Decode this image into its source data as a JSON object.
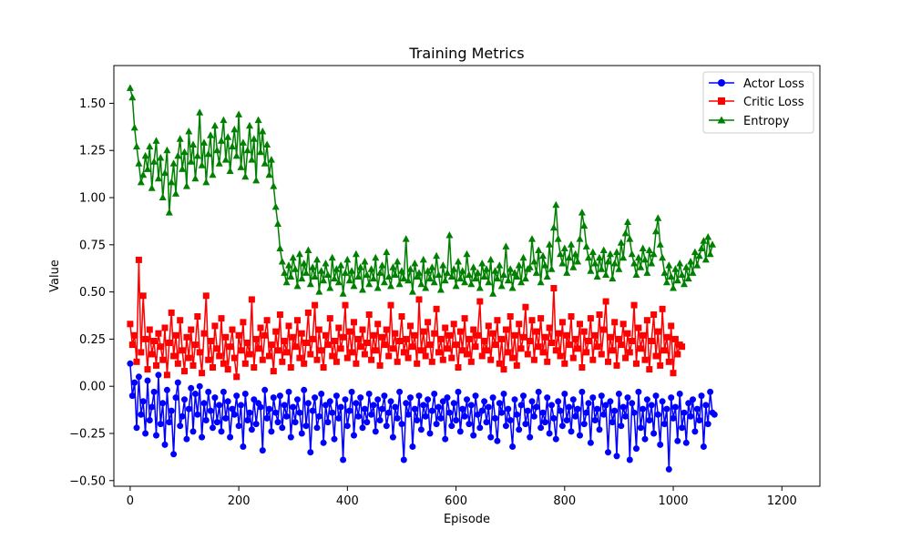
{
  "chart_data": {
    "type": "line",
    "title": "Training Metrics",
    "xlabel": "Episode",
    "ylabel": "Value",
    "xlim": [
      -30,
      1270
    ],
    "ylim": [
      -0.53,
      1.7
    ],
    "xticks": [
      0,
      200,
      400,
      600,
      800,
      1000,
      1200
    ],
    "xtick_labels": [
      "0",
      "200",
      "400",
      "600",
      "800",
      "1000",
      "1200"
    ],
    "yticks": [
      -0.5,
      -0.25,
      0.0,
      0.25,
      0.5,
      0.75,
      1.0,
      1.25,
      1.5
    ],
    "ytick_labels": [
      "−0.50",
      "−0.25",
      "0.00",
      "0.25",
      "0.50",
      "0.75",
      "1.00",
      "1.25",
      "1.50"
    ],
    "grid": false,
    "legend_position": "top-right",
    "x_step": 4,
    "series": [
      {
        "name": "Actor Loss",
        "color": "#0000ff",
        "marker": "circle",
        "values": [
          0.12,
          -0.05,
          0.02,
          -0.22,
          0.05,
          -0.15,
          -0.08,
          -0.25,
          0.03,
          -0.18,
          -0.11,
          -0.03,
          -0.26,
          0.06,
          -0.2,
          -0.09,
          -0.31,
          -0.02,
          -0.19,
          -0.13,
          -0.36,
          -0.06,
          0.02,
          -0.21,
          -0.16,
          -0.07,
          -0.28,
          -0.12,
          -0.01,
          -0.24,
          -0.04,
          -0.15,
          0.0,
          -0.27,
          -0.09,
          -0.18,
          -0.03,
          -0.13,
          -0.22,
          -0.06,
          -0.19,
          -0.1,
          -0.24,
          -0.03,
          -0.17,
          -0.08,
          -0.27,
          -0.12,
          -0.15,
          -0.05,
          -0.21,
          -0.1,
          -0.32,
          -0.04,
          -0.18,
          -0.14,
          -0.23,
          -0.07,
          -0.2,
          -0.09,
          -0.11,
          -0.34,
          -0.02,
          -0.17,
          -0.12,
          -0.24,
          -0.06,
          -0.14,
          -0.19,
          -0.05,
          -0.22,
          -0.1,
          -0.16,
          -0.03,
          -0.27,
          -0.11,
          -0.19,
          -0.07,
          -0.14,
          -0.25,
          -0.02,
          -0.21,
          -0.09,
          -0.35,
          -0.13,
          -0.06,
          -0.22,
          -0.16,
          -0.04,
          -0.3,
          -0.1,
          -0.19,
          -0.08,
          -0.14,
          -0.28,
          -0.05,
          -0.17,
          -0.11,
          -0.39,
          -0.07,
          -0.21,
          -0.13,
          -0.03,
          -0.26,
          -0.09,
          -0.16,
          -0.06,
          -0.22,
          -0.12,
          -0.19,
          -0.04,
          -0.15,
          -0.1,
          -0.24,
          -0.07,
          -0.18,
          -0.12,
          -0.05,
          -0.21,
          -0.14,
          -0.08,
          -0.27,
          -0.11,
          -0.17,
          -0.03,
          -0.2,
          -0.39,
          -0.09,
          -0.15,
          -0.06,
          -0.32,
          -0.12,
          -0.18,
          -0.05,
          -0.23,
          -0.1,
          -0.16,
          -0.07,
          -0.25,
          -0.13,
          -0.04,
          -0.2,
          -0.11,
          -0.17,
          -0.08,
          -0.28,
          -0.06,
          -0.14,
          -0.21,
          -0.09,
          -0.18,
          -0.03,
          -0.24,
          -0.12,
          -0.16,
          -0.07,
          -0.2,
          -0.1,
          -0.26,
          -0.05,
          -0.15,
          -0.22,
          -0.13,
          -0.08,
          -0.19,
          -0.11,
          -0.27,
          -0.06,
          -0.17,
          -0.29,
          -0.09,
          -0.14,
          -0.04,
          -0.21,
          -0.12,
          -0.18,
          -0.32,
          -0.07,
          -0.15,
          -0.23,
          -0.1,
          -0.05,
          -0.2,
          -0.13,
          -0.27,
          -0.08,
          -0.16,
          -0.11,
          -0.03,
          -0.22,
          -0.14,
          -0.19,
          -0.06,
          -0.25,
          -0.1,
          -0.17,
          -0.28,
          -0.08,
          -0.13,
          -0.21,
          -0.04,
          -0.18,
          -0.11,
          -0.24,
          -0.07,
          -0.16,
          -0.12,
          -0.26,
          -0.03,
          -0.2,
          -0.14,
          -0.09,
          -0.3,
          -0.06,
          -0.18,
          -0.12,
          -0.23,
          -0.05,
          -0.15,
          -0.1,
          -0.35,
          -0.08,
          -0.19,
          -0.13,
          -0.37,
          -0.04,
          -0.21,
          -0.11,
          -0.16,
          -0.06,
          -0.39,
          -0.09,
          -0.14,
          -0.33,
          -0.03,
          -0.22,
          -0.12,
          -0.28,
          -0.07,
          -0.18,
          -0.1,
          -0.25,
          -0.05,
          -0.15,
          -0.31,
          -0.08,
          -0.2,
          -0.12,
          -0.44,
          -0.06,
          -0.17,
          -0.11,
          -0.29,
          -0.04,
          -0.22,
          -0.14,
          -0.3,
          -0.09,
          -0.16,
          -0.07,
          -0.24,
          -0.12,
          -0.18,
          -0.05,
          -0.32,
          -0.1,
          -0.2,
          -0.03,
          -0.14,
          -0.15
        ]
      },
      {
        "name": "Critic Loss",
        "color": "#ff0000",
        "marker": "square",
        "values": [
          0.33,
          0.22,
          0.27,
          0.13,
          0.67,
          0.18,
          0.48,
          0.25,
          0.09,
          0.3,
          0.17,
          0.24,
          0.11,
          0.28,
          0.21,
          0.14,
          0.31,
          0.06,
          0.23,
          0.39,
          0.16,
          0.27,
          0.12,
          0.35,
          0.19,
          0.08,
          0.26,
          0.15,
          0.3,
          0.11,
          0.22,
          0.37,
          0.18,
          0.07,
          0.28,
          0.48,
          0.14,
          0.24,
          0.1,
          0.32,
          0.2,
          0.16,
          0.36,
          0.12,
          0.26,
          0.09,
          0.21,
          0.3,
          0.15,
          0.05,
          0.27,
          0.19,
          0.34,
          0.12,
          0.23,
          0.17,
          0.46,
          0.1,
          0.25,
          0.2,
          0.31,
          0.14,
          0.27,
          0.35,
          0.16,
          0.22,
          0.08,
          0.29,
          0.19,
          0.38,
          0.13,
          0.24,
          0.18,
          0.32,
          0.1,
          0.26,
          0.21,
          0.35,
          0.15,
          0.28,
          0.12,
          0.23,
          0.39,
          0.17,
          0.25,
          0.43,
          0.14,
          0.3,
          0.19,
          0.1,
          0.27,
          0.22,
          0.36,
          0.16,
          0.24,
          0.13,
          0.31,
          0.2,
          0.26,
          0.43,
          0.15,
          0.29,
          0.18,
          0.34,
          0.12,
          0.25,
          0.21,
          0.3,
          0.17,
          0.23,
          0.38,
          0.14,
          0.27,
          0.19,
          0.33,
          0.11,
          0.26,
          0.22,
          0.3,
          0.16,
          0.43,
          0.2,
          0.28,
          0.13,
          0.24,
          0.37,
          0.18,
          0.25,
          0.15,
          0.32,
          0.21,
          0.27,
          0.12,
          0.46,
          0.19,
          0.29,
          0.16,
          0.34,
          0.22,
          0.13,
          0.28,
          0.41,
          0.18,
          0.25,
          0.14,
          0.31,
          0.2,
          0.27,
          0.15,
          0.33,
          0.22,
          0.1,
          0.29,
          0.19,
          0.36,
          0.17,
          0.25,
          0.13,
          0.3,
          0.21,
          0.27,
          0.45,
          0.16,
          0.24,
          0.19,
          0.32,
          0.14,
          0.28,
          0.22,
          0.35,
          0.12,
          0.25,
          0.09,
          0.3,
          0.18,
          0.37,
          0.15,
          0.27,
          0.11,
          0.33,
          0.2,
          0.26,
          0.42,
          0.17,
          0.24,
          0.35,
          0.14,
          0.29,
          0.21,
          0.36,
          0.18,
          0.26,
          0.13,
          0.31,
          0.23,
          0.52,
          0.19,
          0.28,
          0.16,
          0.34,
          0.12,
          0.27,
          0.22,
          0.37,
          0.15,
          0.25,
          0.2,
          0.33,
          0.1,
          0.29,
          0.18,
          0.24,
          0.36,
          0.14,
          0.27,
          0.21,
          0.38,
          0.17,
          0.3,
          0.45,
          0.13,
          0.26,
          0.19,
          0.34,
          0.11,
          0.25,
          0.22,
          0.33,
          0.15,
          0.28,
          0.18,
          0.24,
          0.43,
          0.12,
          0.31,
          0.2,
          0.27,
          0.14,
          0.35,
          0.09,
          0.24,
          0.38,
          0.16,
          0.29,
          0.11,
          0.41,
          0.19,
          0.26,
          0.13,
          0.32,
          0.07,
          0.25,
          0.17,
          0.22,
          0.21
        ]
      },
      {
        "name": "Entropy",
        "color": "#008000",
        "marker": "triangle",
        "values": [
          1.58,
          1.53,
          1.37,
          1.27,
          1.18,
          1.08,
          1.12,
          1.22,
          1.15,
          1.27,
          1.05,
          1.19,
          1.3,
          1.1,
          1.21,
          1.0,
          1.13,
          1.25,
          0.92,
          1.08,
          1.18,
          1.02,
          1.22,
          1.31,
          1.15,
          1.24,
          1.06,
          1.35,
          1.19,
          1.28,
          1.1,
          1.22,
          1.45,
          1.17,
          1.29,
          1.08,
          1.23,
          1.33,
          1.12,
          1.38,
          1.25,
          1.18,
          1.3,
          1.41,
          1.2,
          1.32,
          1.14,
          1.27,
          1.36,
          1.22,
          1.44,
          1.16,
          1.29,
          1.11,
          1.25,
          1.38,
          1.2,
          1.31,
          1.09,
          1.41,
          1.24,
          1.35,
          1.18,
          1.28,
          1.12,
          1.2,
          1.06,
          0.95,
          0.86,
          0.73,
          0.66,
          0.6,
          0.55,
          0.64,
          0.58,
          0.68,
          0.62,
          0.53,
          0.7,
          0.57,
          0.65,
          0.6,
          0.72,
          0.54,
          0.63,
          0.58,
          0.67,
          0.5,
          0.61,
          0.56,
          0.65,
          0.59,
          0.52,
          0.68,
          0.57,
          0.62,
          0.55,
          0.64,
          0.49,
          0.6,
          0.67,
          0.56,
          0.61,
          0.53,
          0.7,
          0.58,
          0.63,
          0.51,
          0.66,
          0.59,
          0.54,
          0.62,
          0.57,
          0.68,
          0.52,
          0.6,
          0.64,
          0.55,
          0.71,
          0.58,
          0.53,
          0.63,
          0.59,
          0.66,
          0.54,
          0.61,
          0.57,
          0.78,
          0.56,
          0.62,
          0.5,
          0.65,
          0.58,
          0.6,
          0.54,
          0.67,
          0.52,
          0.61,
          0.57,
          0.63,
          0.55,
          0.69,
          0.59,
          0.51,
          0.64,
          0.56,
          0.6,
          0.8,
          0.58,
          0.62,
          0.53,
          0.66,
          0.57,
          0.61,
          0.55,
          0.7,
          0.59,
          0.54,
          0.63,
          0.57,
          0.6,
          0.52,
          0.65,
          0.58,
          0.62,
          0.55,
          0.67,
          0.49,
          0.61,
          0.57,
          0.64,
          0.53,
          0.59,
          0.74,
          0.56,
          0.62,
          0.52,
          0.6,
          0.58,
          0.64,
          0.55,
          0.68,
          0.57,
          0.62,
          0.63,
          0.78,
          0.66,
          0.6,
          0.72,
          0.55,
          0.69,
          0.64,
          0.58,
          0.75,
          0.62,
          0.84,
          0.96,
          0.78,
          0.7,
          0.65,
          0.73,
          0.6,
          0.68,
          0.75,
          0.63,
          0.7,
          0.66,
          0.78,
          0.92,
          0.85,
          0.74,
          0.68,
          0.61,
          0.71,
          0.65,
          0.58,
          0.68,
          0.62,
          0.72,
          0.59,
          0.66,
          0.7,
          0.57,
          0.65,
          0.71,
          0.62,
          0.76,
          0.68,
          0.81,
          0.87,
          0.78,
          0.7,
          0.65,
          0.59,
          0.68,
          0.63,
          0.73,
          0.67,
          0.6,
          0.72,
          0.65,
          0.7,
          0.82,
          0.89,
          0.75,
          0.68,
          0.6,
          0.55,
          0.64,
          0.58,
          0.52,
          0.62,
          0.56,
          0.65,
          0.59,
          0.54,
          0.63,
          0.57,
          0.66,
          0.6,
          0.71,
          0.64,
          0.69,
          0.73,
          0.77,
          0.67,
          0.79,
          0.7,
          0.75
        ]
      }
    ]
  }
}
